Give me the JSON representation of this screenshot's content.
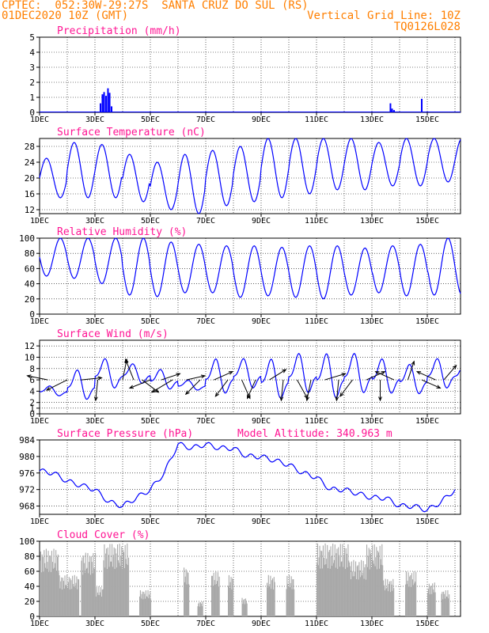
{
  "header": {
    "station_line": "CPTEC:  052:30W-29:27S  SANTA CRUZ DO SUL (RS)",
    "date_line": "01DEC2020 10Z (GMT)",
    "grid_note": "Vertical Grid Line: 10Z",
    "code": "TQ0126L028"
  },
  "colors": {
    "header": "#ff7f00",
    "panel_title": "#ff1493",
    "line": "#0000ff",
    "cloud": "#a9a9a9",
    "axis": "#000000",
    "grid": "#000000"
  },
  "x_tick_labels": [
    "1DEC",
    "3DEC",
    "5DEC",
    "7DEC",
    "9DEC",
    "11DEC",
    "13DEC",
    "15DEC"
  ],
  "chart_data": [
    {
      "id": "precip",
      "type": "bar",
      "title": "Precipitation (mm/h)",
      "ylim": [
        0,
        5
      ],
      "yticks": [
        0,
        1,
        2,
        3,
        4,
        5
      ],
      "x_unit": "days since 01DEC 10Z",
      "x": [
        2.2,
        2.27,
        2.33,
        2.4,
        2.47,
        2.53,
        2.6,
        12.67,
        12.73,
        12.8,
        13.8
      ],
      "values": [
        0.6,
        1.2,
        1.35,
        1.1,
        1.6,
        1.3,
        0.4,
        0.6,
        0.25,
        0.15,
        0.9
      ]
    },
    {
      "id": "temp",
      "type": "line",
      "title": "Surface Temperature (nC)",
      "ylim": [
        11,
        30
      ],
      "yticks": [
        12,
        16,
        20,
        24,
        28
      ],
      "x_unit": "days since 01DEC 10Z",
      "daily_max": [
        25,
        29,
        28.5,
        26,
        24,
        26,
        27,
        28,
        30,
        30,
        30,
        30,
        29,
        30,
        30
      ],
      "daily_min": [
        15,
        15,
        15,
        14,
        12,
        11,
        13,
        14,
        15,
        16,
        17,
        17,
        18,
        18,
        19
      ]
    },
    {
      "id": "rh",
      "type": "line",
      "title": "Relative Humidity (%)",
      "ylim": [
        0,
        100
      ],
      "yticks": [
        0,
        20,
        40,
        60,
        80,
        100
      ],
      "x_unit": "days since 01DEC 10Z",
      "daily_max": [
        100,
        100,
        100,
        100,
        95,
        92,
        90,
        90,
        88,
        90,
        90,
        87,
        90,
        92,
        100
      ],
      "daily_min": [
        50,
        47,
        40,
        25,
        23,
        28,
        28,
        22,
        24,
        22,
        20,
        25,
        28,
        24,
        25
      ]
    },
    {
      "id": "wind",
      "type": "line",
      "title": "Surface Wind (m/s)",
      "ylim": [
        0,
        13
      ],
      "yticks": [
        0,
        1,
        2,
        4,
        6,
        8,
        10,
        12
      ],
      "x_unit": "days since 01DEC 10Z",
      "speed_daily": [
        [
          5,
          3
        ],
        [
          8,
          2
        ],
        [
          10,
          4
        ],
        [
          9,
          5
        ],
        [
          8,
          4
        ],
        [
          6,
          4
        ],
        [
          10,
          3
        ],
        [
          10,
          4
        ],
        [
          10,
          2
        ],
        [
          11,
          3
        ],
        [
          11,
          2
        ],
        [
          11,
          3
        ],
        [
          10,
          3
        ],
        [
          9,
          3
        ],
        [
          10,
          4
        ]
      ],
      "arrows": [
        {
          "t": 0.3,
          "u": -1,
          "v": 0.2
        },
        {
          "t": 1.0,
          "u": -1,
          "v": -0.5
        },
        {
          "t": 1.5,
          "u": 1,
          "v": 0.1
        },
        {
          "t": 2.1,
          "u": -0.1,
          "v": -1
        },
        {
          "t": 3.0,
          "u": 0.2,
          "v": 1
        },
        {
          "t": 3.4,
          "u": -0.4,
          "v": 1
        },
        {
          "t": 3.7,
          "u": 0.8,
          "v": -0.6
        },
        {
          "t": 4.0,
          "u": -1,
          "v": -0.4
        },
        {
          "t": 4.4,
          "u": 0.9,
          "v": 0.3
        },
        {
          "t": 4.8,
          "u": -1,
          "v": -0.6
        },
        {
          "t": 5.3,
          "u": 0.9,
          "v": 0.2
        },
        {
          "t": 5.8,
          "u": -0.7,
          "v": -0.7
        },
        {
          "t": 6.3,
          "u": 0.9,
          "v": 0.4
        },
        {
          "t": 6.8,
          "u": -0.6,
          "v": -0.8
        },
        {
          "t": 7.3,
          "u": 0.4,
          "v": -0.9
        },
        {
          "t": 7.8,
          "u": -0.4,
          "v": -0.9
        },
        {
          "t": 8.3,
          "u": 0.8,
          "v": 0.5
        },
        {
          "t": 8.8,
          "u": -0.1,
          "v": -1
        },
        {
          "t": 9.3,
          "u": 0.5,
          "v": -0.9
        },
        {
          "t": 9.8,
          "u": -0.2,
          "v": -1
        },
        {
          "t": 10.3,
          "u": 1,
          "v": 0.3
        },
        {
          "t": 10.8,
          "u": -0.1,
          "v": -1
        },
        {
          "t": 11.3,
          "u": -0.6,
          "v": -0.8
        },
        {
          "t": 11.8,
          "u": 0.9,
          "v": 0.4
        },
        {
          "t": 12.3,
          "u": 0.0,
          "v": -1
        },
        {
          "t": 12.8,
          "u": -0.9,
          "v": 0.4
        },
        {
          "t": 13.3,
          "u": 0.3,
          "v": 0.9
        },
        {
          "t": 13.8,
          "u": 0.9,
          "v": -0.4
        },
        {
          "t": 14.3,
          "u": -0.9,
          "v": 0.4
        },
        {
          "t": 14.6,
          "u": 0.6,
          "v": 0.7
        }
      ]
    },
    {
      "id": "pressure",
      "type": "line",
      "title": "Surface Pressure (hPa)",
      "note": "Model Altitude: 340.963 m",
      "ylim": [
        966,
        984
      ],
      "yticks": [
        968,
        972,
        976,
        980,
        984
      ],
      "x_unit": "days since 01DEC 10Z",
      "x": [
        0,
        0.5,
        1.0,
        1.5,
        2.0,
        2.5,
        3.0,
        3.5,
        4.0,
        4.5,
        5.0,
        5.5,
        6.0,
        6.5,
        7.0,
        7.5,
        8.0,
        8.5,
        9.0,
        9.5,
        10.0,
        10.5,
        11.0,
        11.5,
        12.0,
        12.5,
        13.0,
        13.5,
        14.0,
        14.5,
        15.0
      ],
      "values": [
        976.5,
        976,
        974,
        973,
        972,
        969,
        968,
        970,
        972,
        976,
        983,
        982,
        983,
        982,
        982,
        980,
        980,
        979,
        978,
        976,
        975,
        972,
        972,
        971,
        970,
        970,
        968,
        968,
        967,
        969,
        972
      ]
    },
    {
      "id": "cloud",
      "type": "bar",
      "title": "Cloud Cover (%)",
      "ylim": [
        0,
        100
      ],
      "yticks": [
        0,
        20,
        40,
        60,
        80,
        100
      ],
      "x_unit": "days since 01DEC 10Z",
      "segments": [
        {
          "start": 0.0,
          "end": 0.7,
          "level": 90
        },
        {
          "start": 0.7,
          "end": 1.4,
          "level": 55
        },
        {
          "start": 1.5,
          "end": 2.0,
          "level": 85
        },
        {
          "start": 2.0,
          "end": 2.3,
          "level": 40
        },
        {
          "start": 2.3,
          "end": 3.2,
          "level": 97
        },
        {
          "start": 3.6,
          "end": 4.0,
          "level": 35
        },
        {
          "start": 5.2,
          "end": 5.4,
          "level": 65
        },
        {
          "start": 5.7,
          "end": 5.9,
          "level": 20
        },
        {
          "start": 6.2,
          "end": 6.5,
          "level": 60
        },
        {
          "start": 6.8,
          "end": 7.0,
          "level": 55
        },
        {
          "start": 7.3,
          "end": 7.5,
          "level": 25
        },
        {
          "start": 8.2,
          "end": 8.5,
          "level": 55
        },
        {
          "start": 8.9,
          "end": 9.2,
          "level": 55
        },
        {
          "start": 10.0,
          "end": 11.2,
          "level": 97
        },
        {
          "start": 11.2,
          "end": 11.8,
          "level": 75
        },
        {
          "start": 11.8,
          "end": 12.4,
          "level": 96
        },
        {
          "start": 12.4,
          "end": 12.8,
          "level": 50
        },
        {
          "start": 13.2,
          "end": 13.6,
          "level": 60
        },
        {
          "start": 14.0,
          "end": 14.3,
          "level": 45
        },
        {
          "start": 14.5,
          "end": 14.8,
          "level": 35
        }
      ]
    }
  ]
}
